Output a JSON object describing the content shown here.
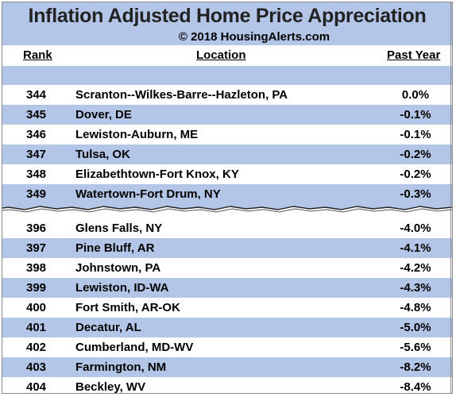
{
  "title": "Inflation Adjusted Home Price Appreciation",
  "copyright": "© 2018 HousingAlerts.com",
  "columns": {
    "rank": "Rank",
    "location": "Location",
    "past_year": "Past Year"
  },
  "top_rows": [
    {
      "rank": "344",
      "location": "Scranton--Wilkes-Barre--Hazleton, PA",
      "past_year": "0.0%"
    },
    {
      "rank": "345",
      "location": "Dover, DE",
      "past_year": "-0.1%"
    },
    {
      "rank": "346",
      "location": "Lewiston-Auburn, ME",
      "past_year": "-0.1%"
    },
    {
      "rank": "347",
      "location": "Tulsa, OK",
      "past_year": "-0.2%"
    },
    {
      "rank": "348",
      "location": "Elizabethtown-Fort Knox, KY",
      "past_year": "-0.2%"
    },
    {
      "rank": "349",
      "location": "Watertown-Fort Drum, NY",
      "past_year": "-0.3%"
    }
  ],
  "bottom_rows": [
    {
      "rank": "396",
      "location": "Glens Falls, NY",
      "past_year": "-4.0%"
    },
    {
      "rank": "397",
      "location": "Pine Bluff, AR",
      "past_year": "-4.1%"
    },
    {
      "rank": "398",
      "location": "Johnstown, PA",
      "past_year": "-4.2%"
    },
    {
      "rank": "399",
      "location": "Lewiston, ID-WA",
      "past_year": "-4.3%"
    },
    {
      "rank": "400",
      "location": "Fort Smith, AR-OK",
      "past_year": "-4.8%"
    },
    {
      "rank": "401",
      "location": "Decatur, AL",
      "past_year": "-5.0%"
    },
    {
      "rank": "402",
      "location": "Cumberland, MD-WV",
      "past_year": "-5.6%"
    },
    {
      "rank": "403",
      "location": "Farmington, NM",
      "past_year": "-8.2%"
    },
    {
      "rank": "404",
      "location": "Beckley, WV",
      "past_year": "-8.4%"
    }
  ],
  "colors": {
    "band": "#b4c6e7",
    "plain": "#ffffff",
    "border": "#8a8a8a"
  }
}
